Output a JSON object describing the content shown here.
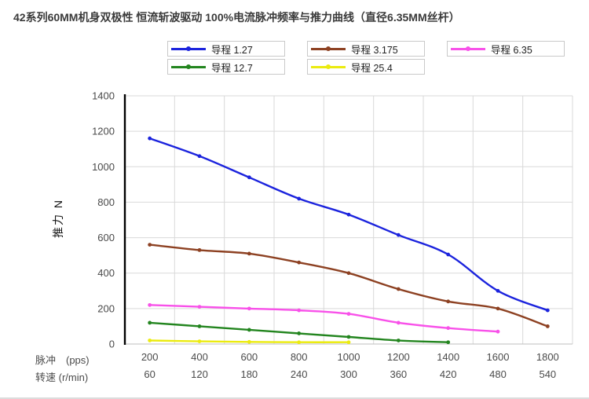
{
  "chart_data": {
    "type": "line",
    "title": "42系列60MM机身双极性 恒流斩波驱动 100%电流脉冲频率与推力曲线（直径6.35MM丝杆）",
    "ylabel": "推力 N",
    "ylim": [
      0,
      1400
    ],
    "ytick_step": 200,
    "grid": true,
    "grid_color": "#d9d9d9",
    "axis_color": "#000000",
    "tick_label_color": "#4a4a4a",
    "legend_position": "top",
    "x_axis_rows": [
      {
        "label": "脉冲　(pps)",
        "values": [
          200,
          400,
          600,
          800,
          1000,
          1200,
          1400,
          1600,
          1800
        ]
      },
      {
        "label": "转速 (r/min)",
        "values": [
          60,
          120,
          180,
          240,
          300,
          360,
          420,
          480,
          540
        ]
      }
    ],
    "series": [
      {
        "name": "导程 1.27",
        "color": "#1b23dd",
        "values": [
          1160,
          1060,
          940,
          820,
          730,
          615,
          505,
          300,
          190
        ]
      },
      {
        "name": "导程 3.175",
        "color": "#8d4122",
        "values": [
          560,
          530,
          510,
          460,
          400,
          310,
          240,
          200,
          100
        ]
      },
      {
        "name": "导程  6.35",
        "color": "#f851e9",
        "values": [
          220,
          210,
          200,
          190,
          170,
          120,
          90,
          70,
          null
        ]
      },
      {
        "name": "导程  12.7",
        "color": "#23851f",
        "values": [
          120,
          100,
          80,
          60,
          40,
          20,
          10,
          null,
          null
        ]
      },
      {
        "name": "导程  25.4",
        "color": "#ebeb0f",
        "values": [
          20,
          15,
          12,
          10,
          10,
          null,
          null,
          null,
          null
        ]
      }
    ]
  }
}
